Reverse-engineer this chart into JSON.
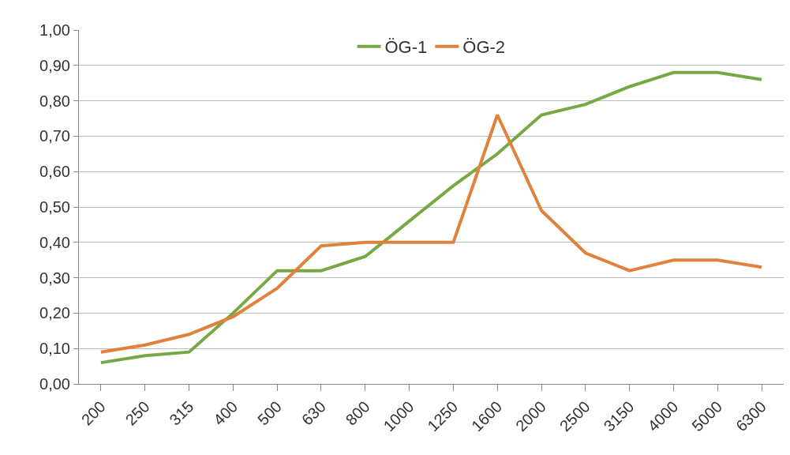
{
  "chart_data": {
    "type": "line",
    "categories": [
      "200",
      "250",
      "315",
      "400",
      "500",
      "630",
      "800",
      "1000",
      "1250",
      "1600",
      "2000",
      "2500",
      "3150",
      "4000",
      "5000",
      "6300"
    ],
    "series": [
      {
        "name": "ÖG-1",
        "color": "#77a844",
        "values": [
          0.06,
          0.08,
          0.09,
          0.2,
          0.32,
          0.32,
          0.36,
          0.46,
          0.56,
          0.65,
          0.76,
          0.79,
          0.84,
          0.88,
          0.88,
          0.86
        ]
      },
      {
        "name": "ÖG-2",
        "color": "#e0823b",
        "values": [
          0.09,
          0.11,
          0.14,
          0.19,
          0.27,
          0.39,
          0.4,
          0.4,
          0.4,
          0.76,
          0.49,
          0.37,
          0.32,
          0.35,
          0.35,
          0.33
        ]
      }
    ],
    "ylim": [
      0,
      1
    ],
    "yticks": [
      {
        "value": 0,
        "label": "0,00"
      },
      {
        "value": 0.1,
        "label": "0,10"
      },
      {
        "value": 0.2,
        "label": "0,20"
      },
      {
        "value": 0.3,
        "label": "0,30"
      },
      {
        "value": 0.4,
        "label": "0,40"
      },
      {
        "value": 0.5,
        "label": "0,50"
      },
      {
        "value": 0.6,
        "label": "0,60"
      },
      {
        "value": 0.7,
        "label": "0,70"
      },
      {
        "value": 0.8,
        "label": "0,80"
      },
      {
        "value": 0.9,
        "label": "0,90"
      },
      {
        "value": 1,
        "label": "1,00"
      }
    ],
    "grid": "y",
    "legend": "top",
    "marker": "none",
    "line_style": "solid"
  }
}
